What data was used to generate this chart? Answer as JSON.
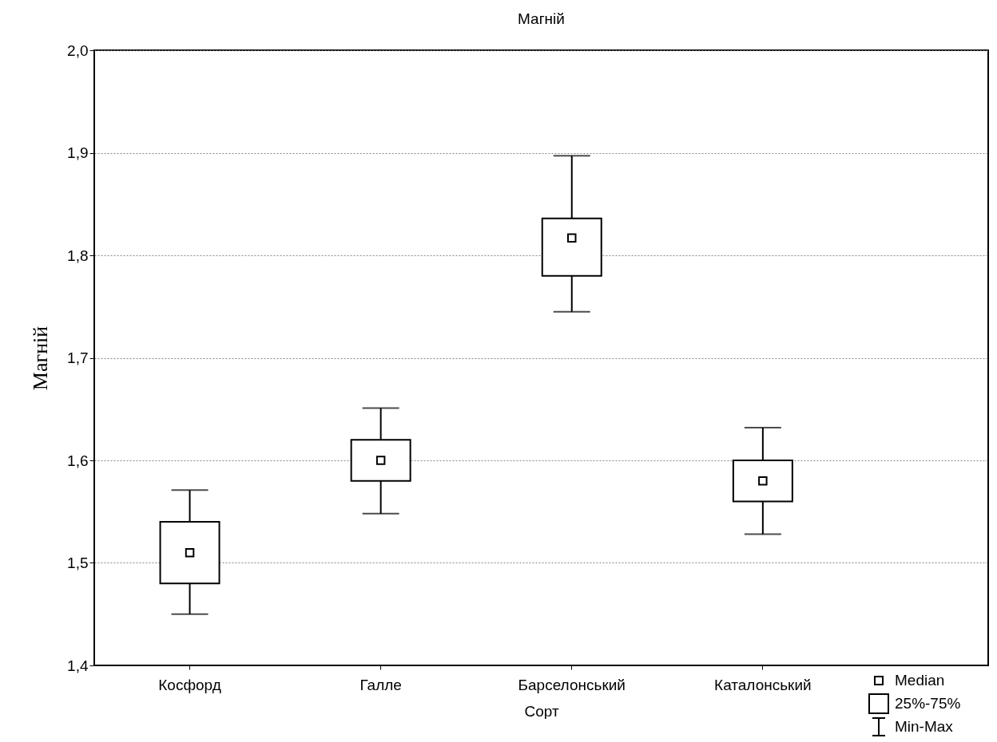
{
  "chart_data": {
    "type": "box",
    "title": "Магній",
    "xlabel": "Сорт",
    "ylabel": "Магній",
    "categories": [
      "Косфорд",
      "Галле",
      "Барселонський",
      "Каталонський"
    ],
    "boxes": [
      {
        "low": 1.45,
        "q1": 1.48,
        "median": 1.51,
        "q3": 1.54,
        "high": 1.571
      },
      {
        "low": 1.548,
        "q1": 1.58,
        "median": 1.6,
        "q3": 1.62,
        "high": 1.651
      },
      {
        "low": 1.745,
        "q1": 1.78,
        "median": 1.817,
        "q3": 1.836,
        "high": 1.897
      },
      {
        "low": 1.528,
        "q1": 1.56,
        "median": 1.58,
        "q3": 1.6,
        "high": 1.632
      }
    ],
    "ylim": [
      1.4,
      2.0
    ],
    "yticks": [
      {
        "value": 1.4,
        "label": "1,4"
      },
      {
        "value": 1.5,
        "label": "1,5"
      },
      {
        "value": 1.6,
        "label": "1,6"
      },
      {
        "value": 1.7,
        "label": "1,7"
      },
      {
        "value": 1.8,
        "label": "1,8"
      },
      {
        "value": 1.9,
        "label": "1,9"
      },
      {
        "value": 2.0,
        "label": "2,0"
      }
    ],
    "grid": "y",
    "annotations": [
      "Median",
      "25%-75%",
      "Min-Max"
    ]
  }
}
